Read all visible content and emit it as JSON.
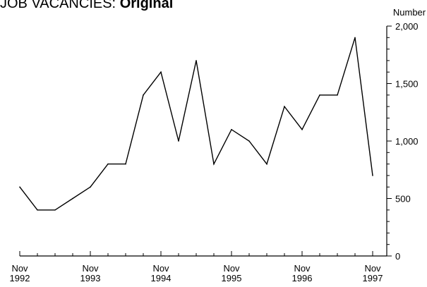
{
  "title_prefix": "JOB VACANCIES:",
  "title_bold": "Original",
  "chart_data": {
    "type": "line",
    "title": "JOB VACANCIES: Original",
    "ylabel": "Number",
    "ylim": [
      0,
      2000
    ],
    "yticks": [
      0,
      500,
      1000,
      1500,
      2000
    ],
    "ytick_labels": [
      "0",
      "500",
      "1,000",
      "1,500",
      "2,000"
    ],
    "xlim": [
      "Nov 1992",
      "Nov 1997"
    ],
    "xtick_labels": [
      [
        "Nov",
        "1992"
      ],
      [
        "Nov",
        "1993"
      ],
      [
        "Nov",
        "1994"
      ],
      [
        "Nov",
        "1995"
      ],
      [
        "Nov",
        "1996"
      ],
      [
        "Nov",
        "1997"
      ]
    ],
    "grid": false,
    "x": [
      "Nov 1992",
      "Feb 1993",
      "May 1993",
      "Aug 1993",
      "Nov 1993",
      "Feb 1994",
      "May 1994",
      "Aug 1994",
      "Nov 1994",
      "Feb 1995",
      "May 1995",
      "Aug 1995",
      "Nov 1995",
      "Feb 1996",
      "May 1996",
      "Aug 1996",
      "Nov 1996",
      "Feb 1997",
      "May 1997",
      "Aug 1997",
      "Nov 1997"
    ],
    "values": [
      600,
      400,
      400,
      500,
      600,
      800,
      800,
      1400,
      1600,
      1000,
      1700,
      800,
      1100,
      1000,
      800,
      1300,
      1100,
      1400,
      1400,
      1900,
      700
    ]
  }
}
